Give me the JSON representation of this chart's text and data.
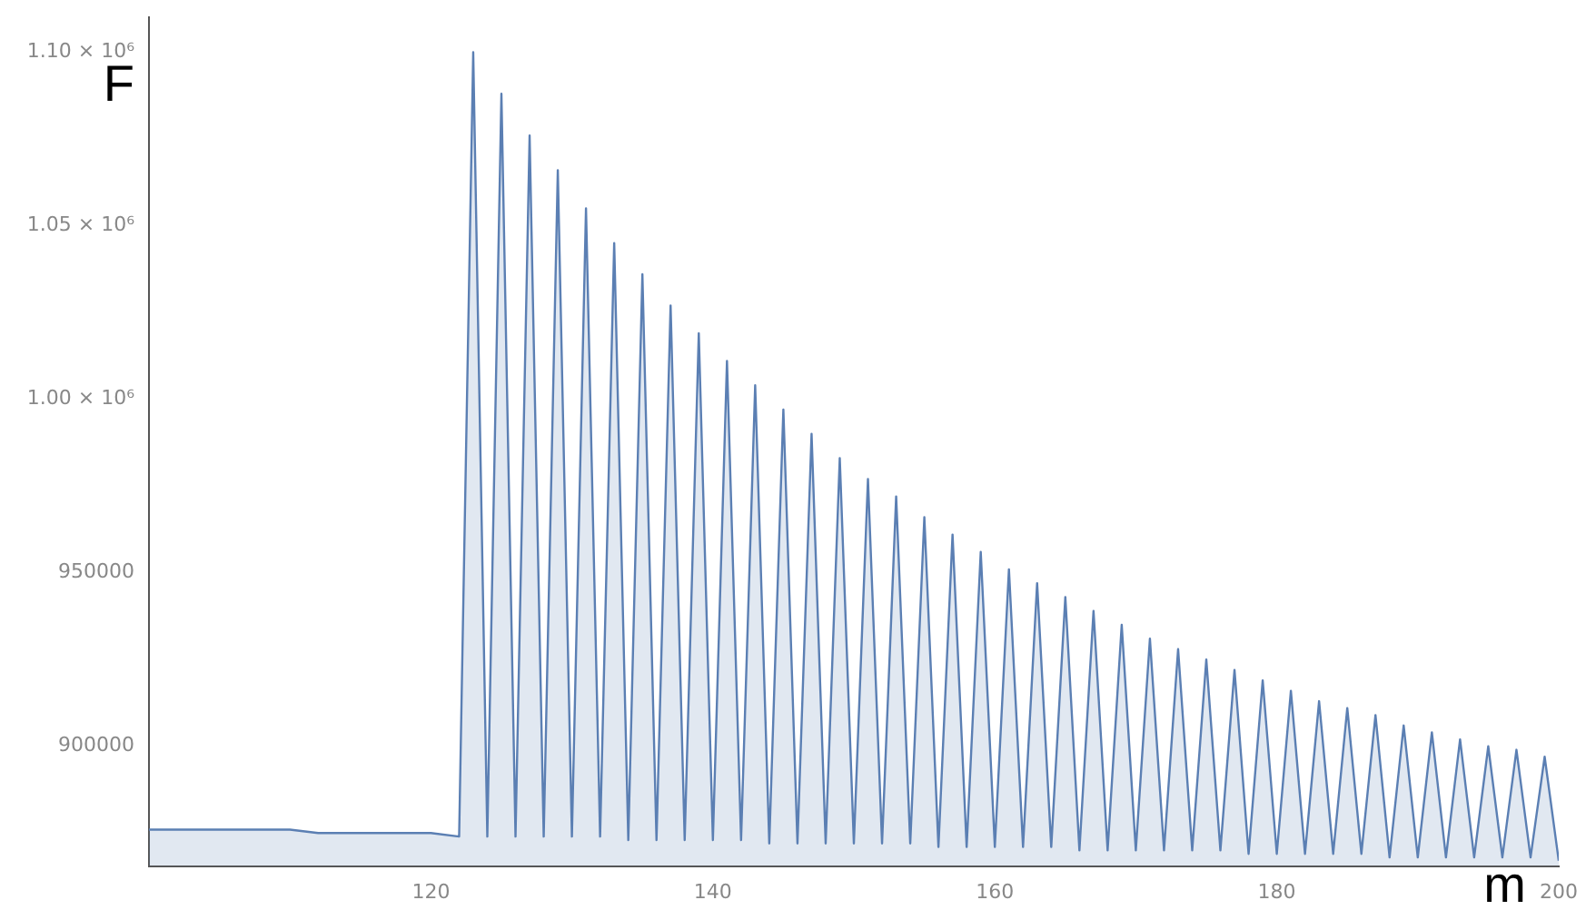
{
  "chart_data": {
    "type": "area",
    "xlabel": "m",
    "ylabel": "F",
    "x": [
      100,
      101,
      102,
      103,
      104,
      105,
      106,
      107,
      108,
      109,
      110,
      111,
      112,
      113,
      114,
      115,
      116,
      117,
      118,
      119,
      120,
      121,
      122,
      123,
      124,
      125,
      126,
      127,
      128,
      129,
      130,
      131,
      132,
      133,
      134,
      135,
      136,
      137,
      138,
      139,
      140,
      141,
      142,
      143,
      144,
      145,
      146,
      147,
      148,
      149,
      150,
      151,
      152,
      153,
      154,
      155,
      156,
      157,
      158,
      159,
      160,
      161,
      162,
      163,
      164,
      165,
      166,
      167,
      168,
      169,
      170,
      171,
      172,
      173,
      174,
      175,
      176,
      177,
      178,
      179,
      180,
      181,
      182,
      183,
      184,
      185,
      186,
      187,
      188,
      189,
      190,
      191,
      192,
      193,
      194,
      195,
      196,
      197,
      198,
      199,
      200
    ],
    "series": [
      {
        "color": "#5b7fb3",
        "values": [
          876000,
          null,
          876000,
          null,
          876000,
          null,
          876000,
          null,
          876000,
          null,
          876000,
          null,
          875000,
          null,
          875000,
          null,
          875000,
          null,
          875000,
          null,
          875000,
          null,
          874000,
          1100000,
          874000,
          1088000,
          874000,
          1076000,
          874000,
          1066000,
          874000,
          1055000,
          874000,
          1045000,
          873000,
          1036000,
          873000,
          1027000,
          873000,
          1019000,
          873000,
          1011000,
          873000,
          1004000,
          872000,
          997000,
          872000,
          990000,
          872000,
          983000,
          872000,
          977000,
          872000,
          972000,
          872000,
          966000,
          871000,
          961000,
          871000,
          956000,
          871000,
          951000,
          871000,
          947000,
          871000,
          943000,
          870000,
          939000,
          870000,
          935000,
          870000,
          931000,
          870000,
          928000,
          870000,
          925000,
          870000,
          922000,
          869000,
          919000,
          869000,
          916000,
          869000,
          913000,
          869000,
          911000,
          869000,
          909000,
          868000,
          906000,
          868000,
          904000,
          868000,
          902000,
          868000,
          900000,
          868000,
          899000,
          868000,
          897000,
          867000
        ]
      }
    ],
    "xlim": [
      100,
      200
    ],
    "xticks": [
      120,
      140,
      160,
      180,
      200
    ],
    "ylim": [
      865500,
      1110000
    ],
    "yticks": [
      900000,
      950000,
      {
        "value": 1000000,
        "label": "1.00 × 10⁶"
      },
      {
        "value": 1050000,
        "label": "1.05 × 10⁶"
      },
      {
        "value": 1100000,
        "label": "1.10 × 10⁶"
      }
    ],
    "grid": false,
    "legend": false
  }
}
